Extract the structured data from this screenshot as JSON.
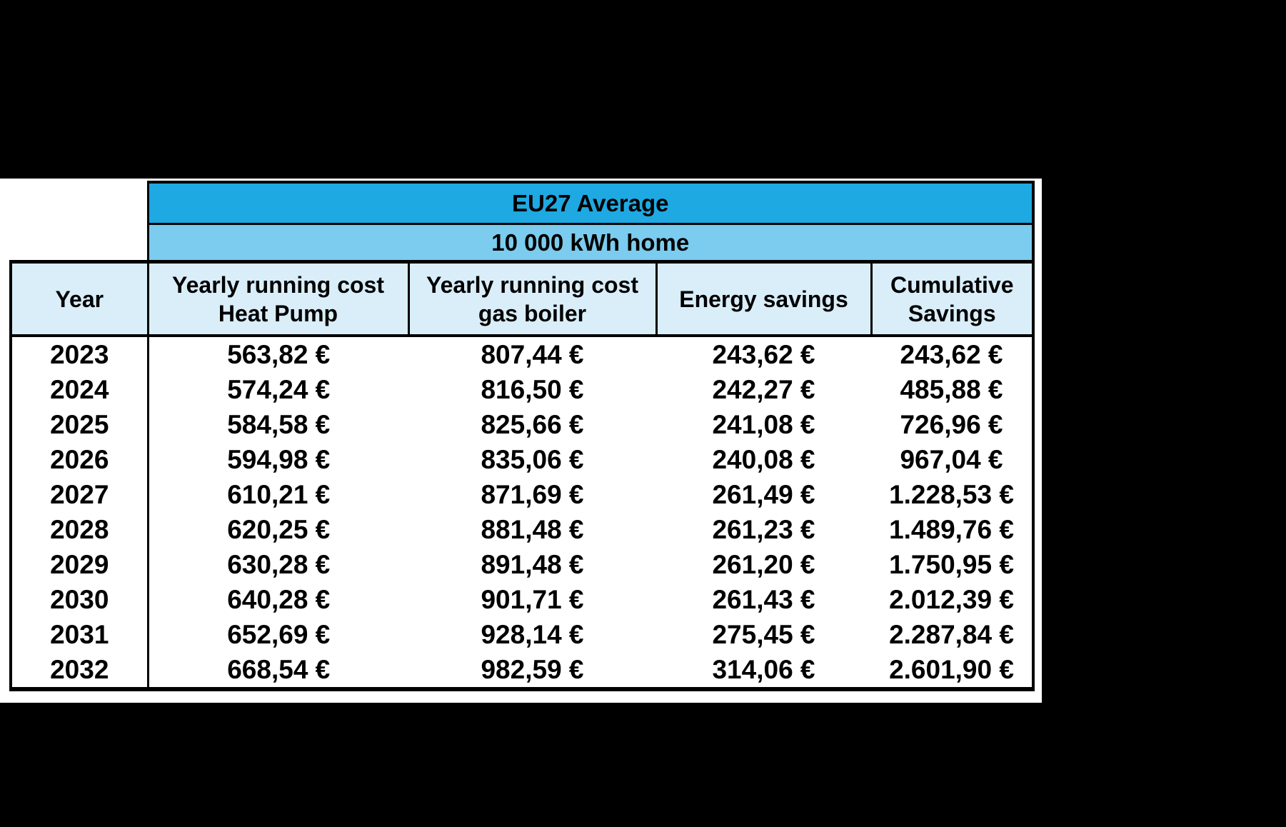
{
  "colors": {
    "canvas_bg": "#000000",
    "table_bg": "#FFFFFF",
    "title_bg": "#1EA9E2",
    "subtitle_bg": "#7BCCEE",
    "header_bg": "#D9EEF9",
    "border": "#000000",
    "text": "#000000"
  },
  "table": {
    "region_title": "EU27 Average",
    "region_subtitle": "10 000 kWh home",
    "columns": [
      "Year",
      "Yearly running cost\nHeat Pump",
      "Yearly running cost\ngas boiler",
      "Energy savings",
      "Cumulative\nSavings"
    ],
    "rows": [
      [
        "2023",
        "563,82 €",
        "807,44 €",
        "243,62 €",
        "243,62 €"
      ],
      [
        "2024",
        "574,24 €",
        "816,50 €",
        "242,27 €",
        "485,88 €"
      ],
      [
        "2025",
        "584,58 €",
        "825,66 €",
        "241,08 €",
        "726,96 €"
      ],
      [
        "2026",
        "594,98 €",
        "835,06 €",
        "240,08 €",
        "967,04 €"
      ],
      [
        "2027",
        "610,21 €",
        "871,69 €",
        "261,49 €",
        "1.228,53 €"
      ],
      [
        "2028",
        "620,25 €",
        "881,48 €",
        "261,23 €",
        "1.489,76 €"
      ],
      [
        "2029",
        "630,28 €",
        "891,48 €",
        "261,20 €",
        "1.750,95 €"
      ],
      [
        "2030",
        "640,28 €",
        "901,71 €",
        "261,43 €",
        "2.012,39 €"
      ],
      [
        "2031",
        "652,69 €",
        "928,14 €",
        "275,45 €",
        "2.287,84 €"
      ],
      [
        "2032",
        "668,54 €",
        "982,59 €",
        "314,06 €",
        "2.601,90 €"
      ]
    ]
  },
  "chart_data": {
    "type": "table",
    "title": "EU27 Average",
    "subtitle": "10 000 kWh home",
    "unit": "EUR",
    "number_format": "european (comma decimal, dot thousands)",
    "categories": [
      2023,
      2024,
      2025,
      2026,
      2027,
      2028,
      2029,
      2030,
      2031,
      2032
    ],
    "series": [
      {
        "name": "Yearly running cost Heat Pump",
        "values": [
          563.82,
          574.24,
          584.58,
          594.98,
          610.21,
          620.25,
          630.28,
          640.28,
          652.69,
          668.54
        ]
      },
      {
        "name": "Yearly running cost gas boiler",
        "values": [
          807.44,
          816.5,
          825.66,
          835.06,
          871.69,
          881.48,
          891.48,
          901.71,
          928.14,
          982.59
        ]
      },
      {
        "name": "Energy savings",
        "values": [
          243.62,
          242.27,
          241.08,
          240.08,
          261.49,
          261.23,
          261.2,
          261.43,
          275.45,
          314.06
        ]
      },
      {
        "name": "Cumulative Savings",
        "values": [
          243.62,
          485.88,
          726.96,
          967.04,
          1228.53,
          1489.76,
          1750.95,
          2012.39,
          2287.84,
          2601.9
        ]
      }
    ],
    "layout": "black letterboxed slide, white table panel at top-left, table columns centered"
  }
}
